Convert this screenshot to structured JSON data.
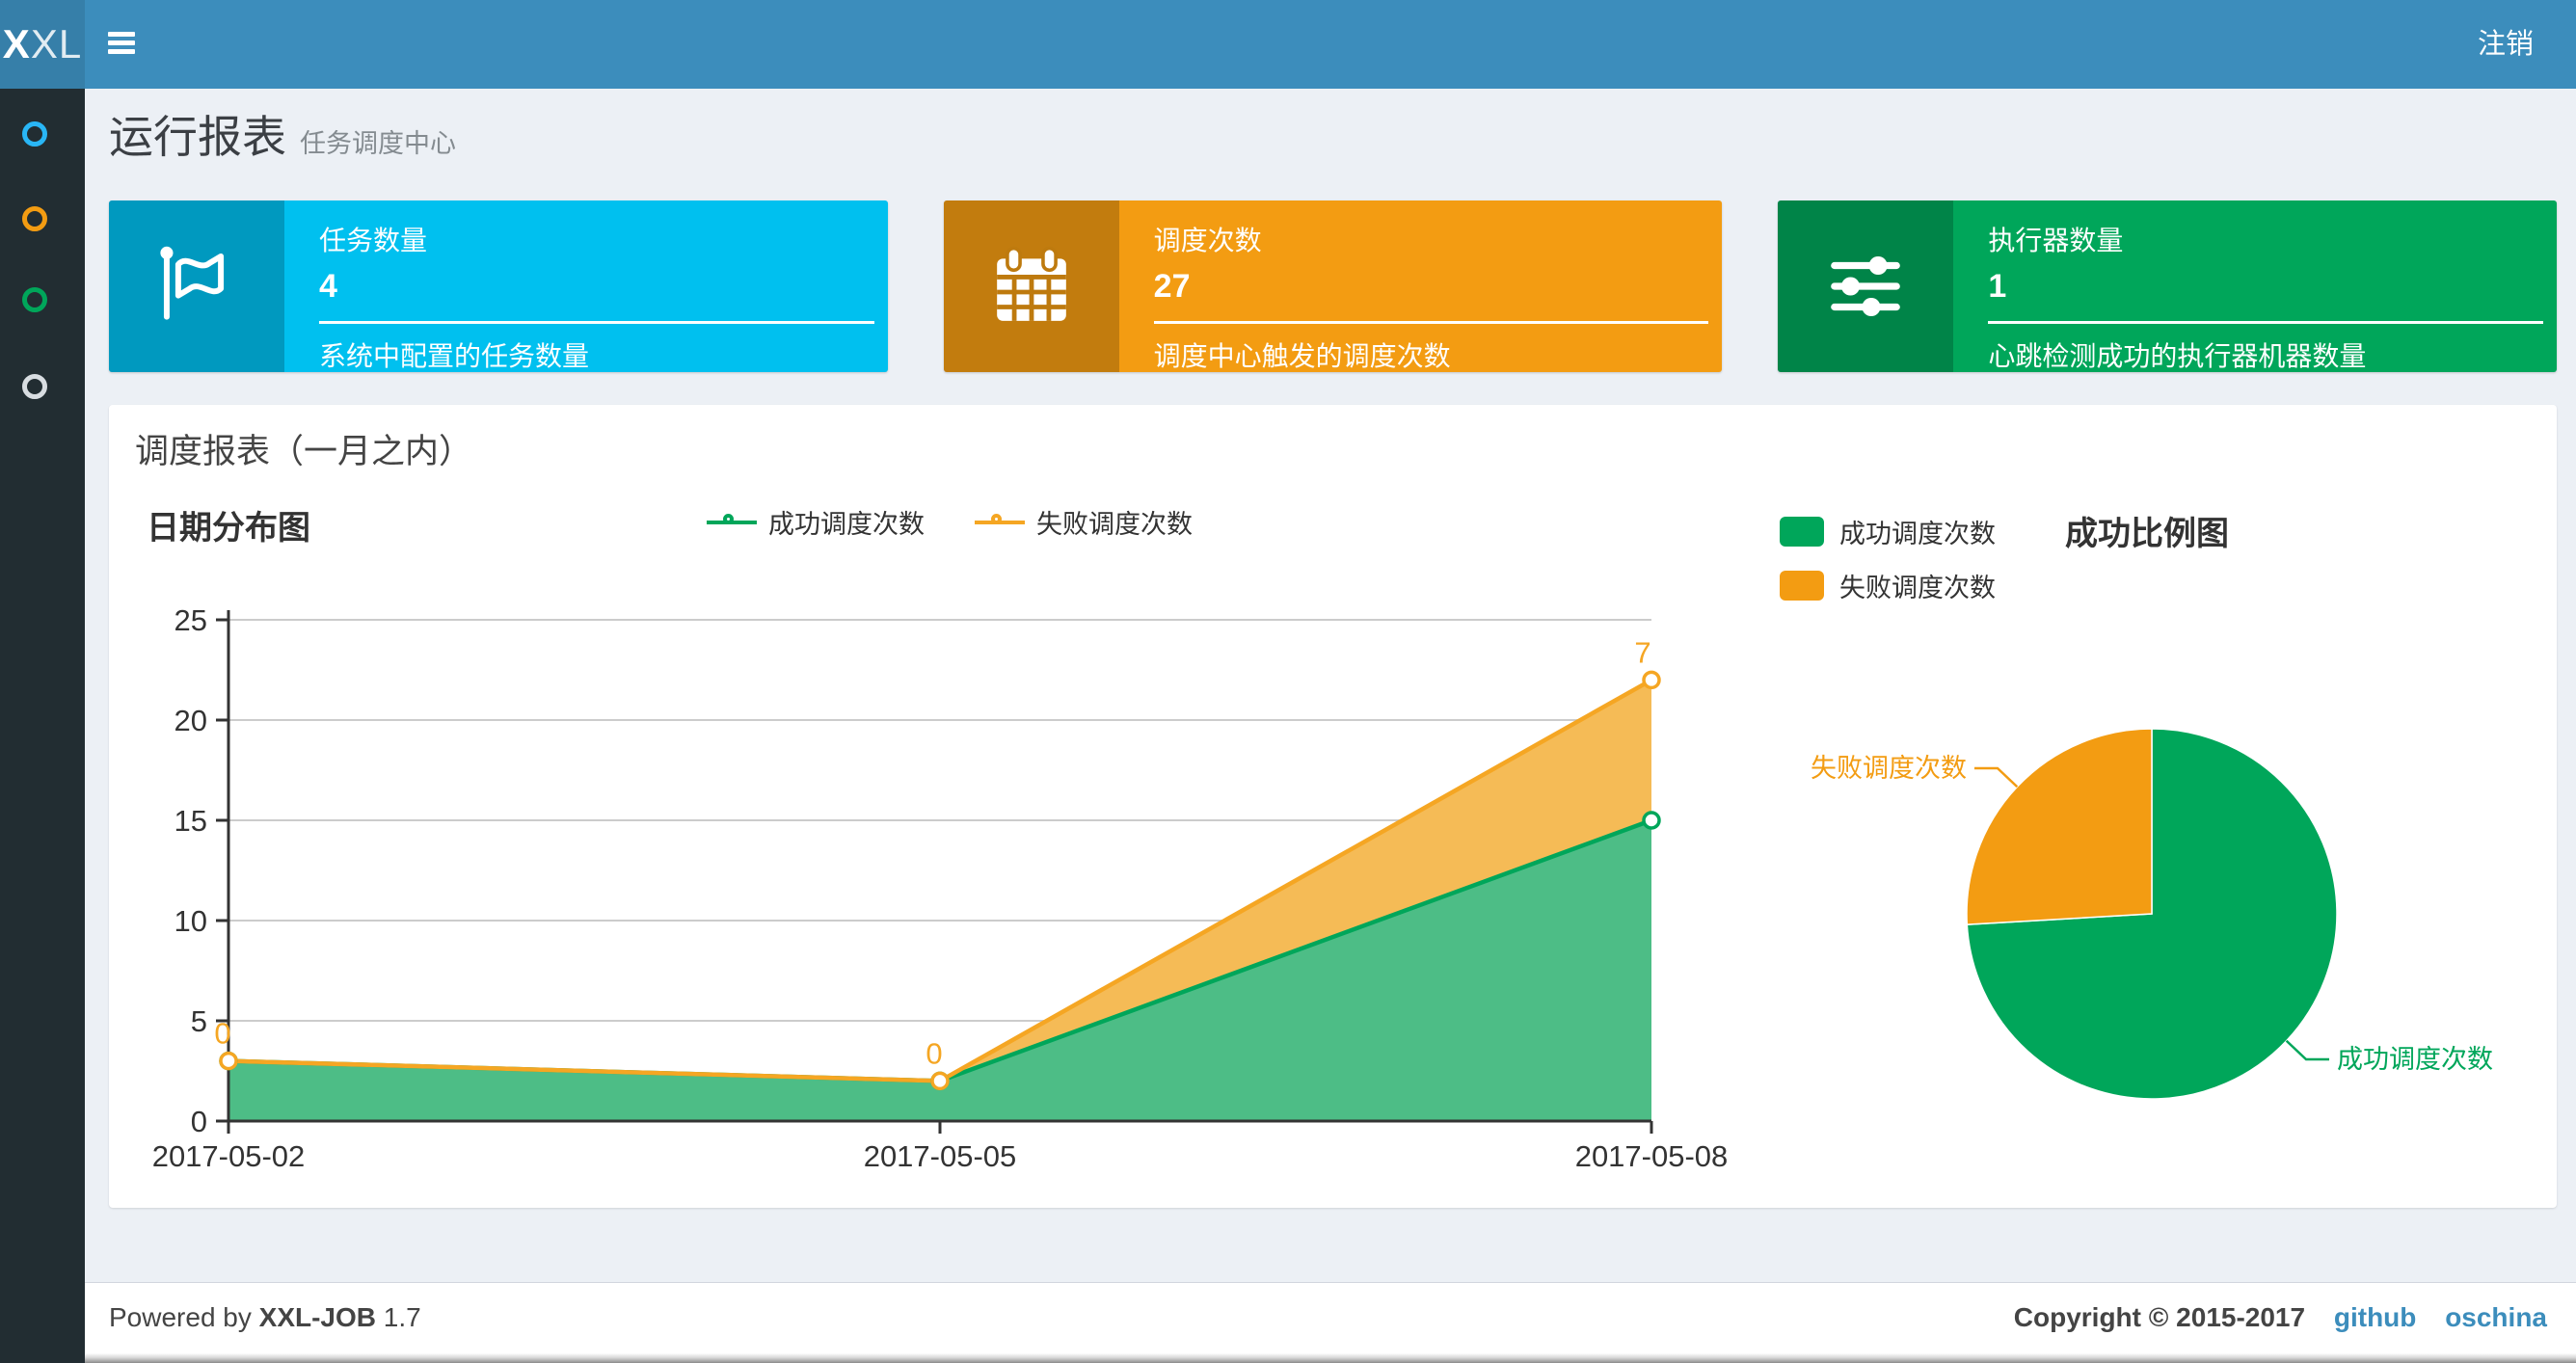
{
  "navbar": {
    "logo_bold": "X",
    "logo_rest": "XL",
    "logout_label": "注销"
  },
  "sidebar": {
    "items": [
      {
        "name": "menu-circle-1",
        "color": "#29b6f6"
      },
      {
        "name": "menu-circle-2",
        "color": "#f39c12"
      },
      {
        "name": "menu-circle-3",
        "color": "#00a65a"
      },
      {
        "name": "menu-circle-4",
        "color": "#d8dde1"
      }
    ]
  },
  "header": {
    "title": "运行报表",
    "subtitle": "任务调度中心"
  },
  "info_boxes": [
    {
      "icon": "flag-icon",
      "title": "任务数量",
      "value": "4",
      "desc": "系统中配置的任务数量",
      "color": "#00c0ef"
    },
    {
      "icon": "calendar-icon",
      "title": "调度次数",
      "value": "27",
      "desc": "调度中心触发的调度次数",
      "color": "#f39c12"
    },
    {
      "icon": "sliders-icon",
      "title": "执行器数量",
      "value": "1",
      "desc": "心跳检测成功的执行器机器数量",
      "color": "#00a65a"
    }
  ],
  "panel": {
    "title": "调度报表（一月之内）"
  },
  "chart_data": [
    {
      "type": "area",
      "title": "日期分布图",
      "stacked": true,
      "categories": [
        "2017-05-02",
        "2017-05-05",
        "2017-05-08"
      ],
      "series": [
        {
          "name": "成功调度次数",
          "values": [
            3,
            2,
            15
          ],
          "color": "#00a65a",
          "fill": "#4dbd86",
          "labels": false
        },
        {
          "name": "失败调度次数",
          "values": [
            0,
            0,
            7
          ],
          "color": "#f5a623",
          "fill": "#f5bb56",
          "labels": true
        }
      ],
      "ylim": [
        0,
        25
      ],
      "yticks": [
        0,
        5,
        10,
        15,
        20,
        25
      ],
      "grid": true,
      "legend_position": "top-center"
    },
    {
      "type": "pie",
      "title": "成功比例图",
      "slices": [
        {
          "name": "成功调度次数",
          "value": 20,
          "color": "#00a65a"
        },
        {
          "name": "失败调度次数",
          "value": 7,
          "color": "#f39c12"
        }
      ],
      "start_angle": "top",
      "legend_position": "top-left"
    }
  ],
  "footer": {
    "powered_prefix": "Powered by",
    "brand": "XXL-JOB",
    "version": "1.7",
    "copyright": "Copyright © 2015-2017",
    "links": [
      {
        "label": "github"
      },
      {
        "label": "oschina"
      }
    ]
  }
}
